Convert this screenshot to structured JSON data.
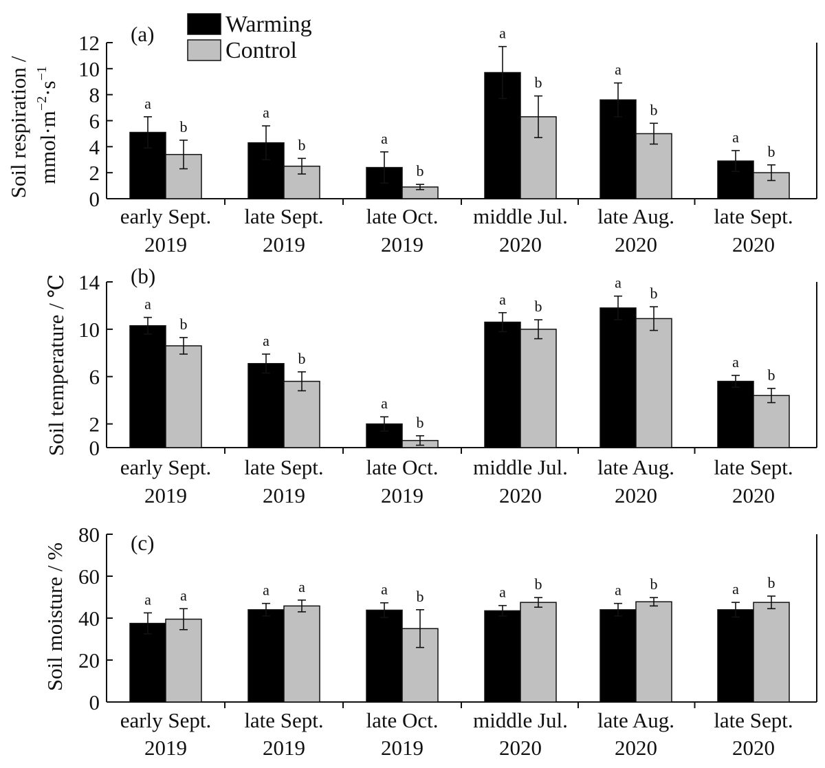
{
  "colors": {
    "warming": "#000000",
    "control": "#c0c0c0",
    "axis": "#111111"
  },
  "legend": {
    "warming_label": "Warming",
    "control_label": "Control"
  },
  "chart_data": [
    {
      "type": "bar",
      "panel": "(a)",
      "ylabel": "Soil respiration / mmol·m⁻²·s⁻¹",
      "ylabel_line1": "Soil respiration /",
      "ylabel_line2": "mmol·m",
      "ylabel_sup1": "−2",
      "ylabel_mid": "·s",
      "ylabel_sup2": "−1",
      "ylim": [
        0,
        12
      ],
      "yticks": [
        0,
        2,
        4,
        6,
        8,
        10,
        12
      ],
      "categories": [
        [
          "early Sept.",
          "2019"
        ],
        [
          "late Sept.",
          "2019"
        ],
        [
          "late Oct.",
          "2019"
        ],
        [
          "middle Jul.",
          "2020"
        ],
        [
          "late Aug.",
          "2020"
        ],
        [
          "late Sept.",
          "2020"
        ]
      ],
      "series": [
        {
          "name": "Warming",
          "values": [
            5.1,
            4.3,
            2.4,
            9.7,
            7.6,
            2.9
          ],
          "errors": [
            1.2,
            1.3,
            1.2,
            2.0,
            1.3,
            0.8
          ],
          "letters": [
            "a",
            "a",
            "a",
            "a",
            "a",
            "a"
          ]
        },
        {
          "name": "Control",
          "values": [
            3.4,
            2.5,
            0.9,
            6.3,
            5.0,
            2.0
          ],
          "errors": [
            1.1,
            0.6,
            0.2,
            1.6,
            0.8,
            0.6
          ],
          "letters": [
            "b",
            "b",
            "b",
            "b",
            "b",
            "b"
          ]
        }
      ]
    },
    {
      "type": "bar",
      "panel": "(b)",
      "ylabel": "Soil temperature / ℃",
      "ylim": [
        0,
        14
      ],
      "yticks": [
        0,
        2,
        6,
        10,
        14
      ],
      "categories": [
        [
          "early Sept.",
          "2019"
        ],
        [
          "late Sept.",
          "2019"
        ],
        [
          "late Oct.",
          "2019"
        ],
        [
          "middle Jul.",
          "2020"
        ],
        [
          "late Aug.",
          "2020"
        ],
        [
          "late Sept.",
          "2020"
        ]
      ],
      "series": [
        {
          "name": "Warming",
          "values": [
            10.3,
            7.1,
            2.0,
            10.6,
            11.8,
            5.6
          ],
          "errors": [
            0.7,
            0.8,
            0.6,
            0.8,
            1.0,
            0.5
          ],
          "letters": [
            "a",
            "a",
            "a",
            "a",
            "a",
            "a"
          ]
        },
        {
          "name": "Control",
          "values": [
            8.6,
            5.6,
            0.6,
            10.0,
            10.9,
            4.4
          ],
          "errors": [
            0.7,
            0.8,
            0.4,
            0.8,
            1.0,
            0.6
          ],
          "letters": [
            "b",
            "b",
            "b",
            "b",
            "b",
            "b"
          ]
        }
      ]
    },
    {
      "type": "bar",
      "panel": "(c)",
      "ylabel": "Soil moisture / %",
      "ylim": [
        0,
        80
      ],
      "yticks": [
        0,
        20,
        40,
        60,
        80
      ],
      "categories": [
        [
          "early Sept.",
          "2019"
        ],
        [
          "late Sept.",
          "2019"
        ],
        [
          "late Oct.",
          "2019"
        ],
        [
          "middle Jul.",
          "2020"
        ],
        [
          "late Aug.",
          "2020"
        ],
        [
          "late Sept.",
          "2020"
        ]
      ],
      "series": [
        {
          "name": "Warming",
          "values": [
            37.5,
            44.0,
            43.8,
            43.5,
            44.0,
            44.0
          ],
          "errors": [
            5.0,
            3.0,
            3.5,
            2.5,
            3.0,
            3.5
          ],
          "letters": [
            "a",
            "a",
            "a",
            "a",
            "a",
            "a"
          ]
        },
        {
          "name": "Control",
          "values": [
            39.5,
            45.8,
            35.0,
            47.5,
            47.8,
            47.5
          ],
          "errors": [
            5.0,
            2.8,
            9.0,
            2.3,
            2.0,
            3.0
          ],
          "letters": [
            "a",
            "a",
            "b",
            "b",
            "b",
            "b"
          ]
        }
      ]
    }
  ]
}
